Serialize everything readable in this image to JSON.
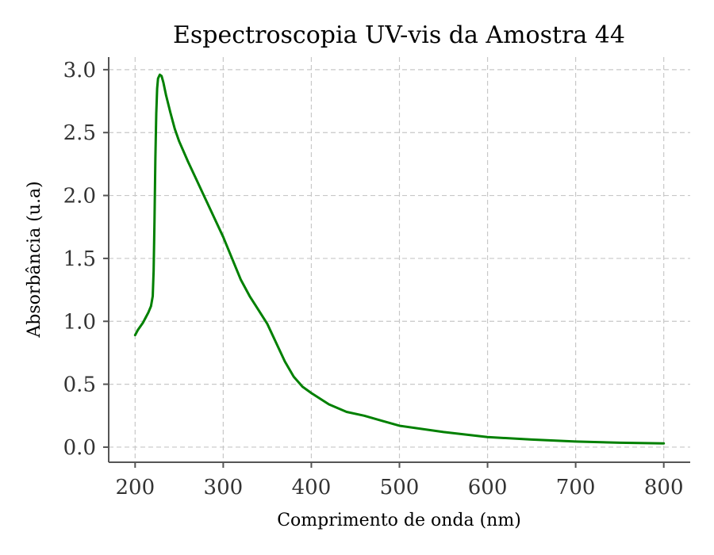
{
  "chart_data": {
    "type": "line",
    "title": "Espectroscopia UV-vis da Amostra 44",
    "xlabel": "Comprimento de onda (nm)",
    "ylabel": "Absorbância (u.a)",
    "xlim": [
      170,
      830
    ],
    "ylim": [
      -0.12,
      3.1
    ],
    "xticks": [
      200,
      300,
      400,
      500,
      600,
      700,
      800
    ],
    "xtick_labels": [
      "200",
      "300",
      "400",
      "500",
      "600",
      "700",
      "800"
    ],
    "yticks": [
      0.0,
      0.5,
      1.0,
      1.5,
      2.0,
      2.5,
      3.0
    ],
    "ytick_labels": [
      "0.0",
      "0.5",
      "1.0",
      "1.5",
      "2.0",
      "2.5",
      "3.0"
    ],
    "grid": true,
    "series": [
      {
        "color": "#008000",
        "x": [
          200,
          203,
          206,
          209,
          212,
          215,
          218,
          220,
          221,
          222,
          223,
          224,
          225,
          226,
          228,
          230,
          232,
          235,
          240,
          245,
          250,
          260,
          270,
          280,
          290,
          300,
          310,
          320,
          330,
          340,
          350,
          360,
          370,
          380,
          390,
          400,
          420,
          440,
          460,
          480,
          500,
          550,
          600,
          650,
          700,
          750,
          800
        ],
        "y": [
          0.89,
          0.93,
          0.96,
          0.99,
          1.03,
          1.07,
          1.12,
          1.2,
          1.4,
          1.8,
          2.3,
          2.65,
          2.85,
          2.93,
          2.96,
          2.95,
          2.9,
          2.8,
          2.66,
          2.53,
          2.43,
          2.27,
          2.12,
          1.97,
          1.82,
          1.67,
          1.5,
          1.33,
          1.2,
          1.09,
          0.98,
          0.83,
          0.68,
          0.56,
          0.48,
          0.43,
          0.34,
          0.28,
          0.25,
          0.21,
          0.17,
          0.12,
          0.08,
          0.06,
          0.045,
          0.035,
          0.03
        ]
      }
    ]
  }
}
